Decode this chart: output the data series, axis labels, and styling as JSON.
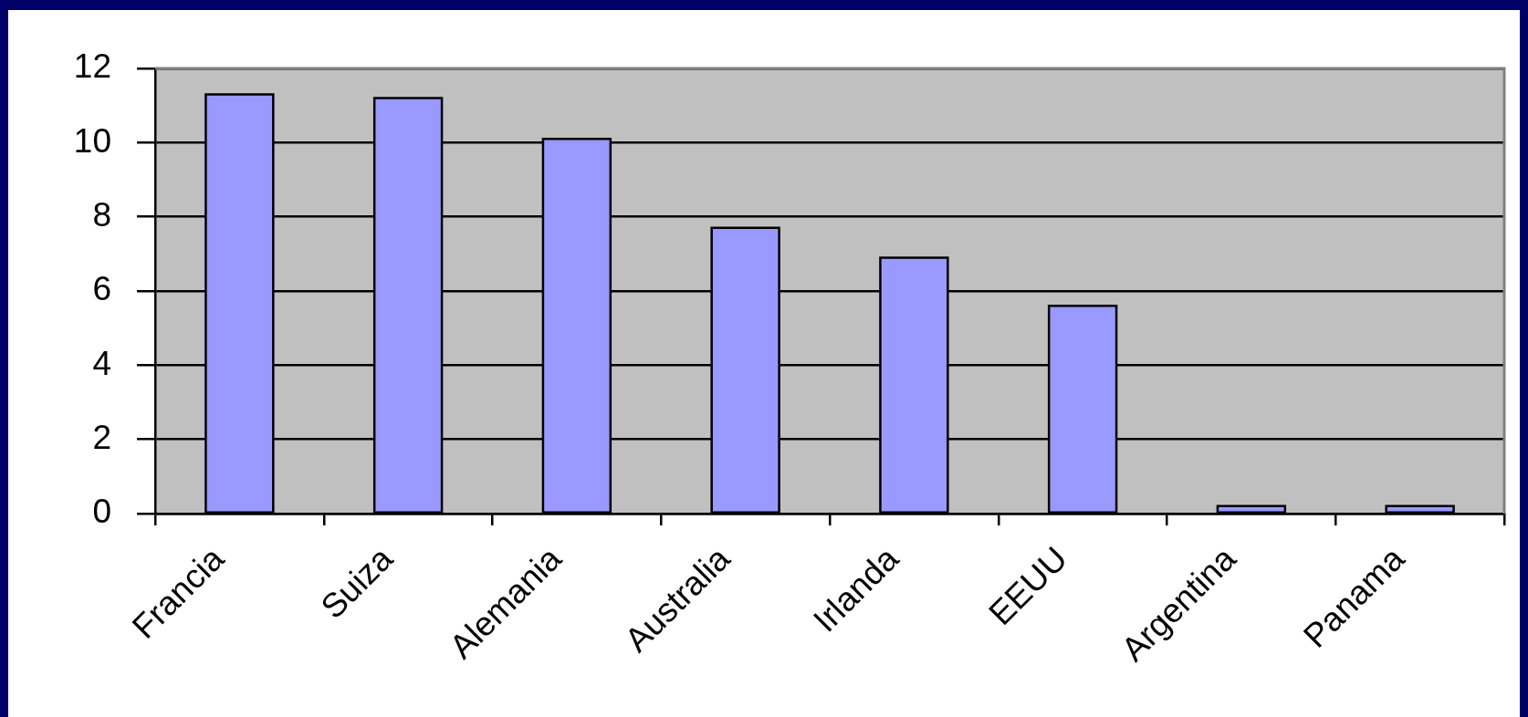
{
  "chart_data": {
    "type": "bar",
    "categories": [
      "Francia",
      "Suiza",
      "Alemania",
      "Australia",
      "Irlanda",
      "EEUU",
      "Argentina",
      "Panama"
    ],
    "values": [
      11.3,
      11.2,
      10.1,
      7.7,
      6.9,
      5.6,
      0.2,
      0.2
    ],
    "color": "#9999ff",
    "ylim": [
      0,
      12
    ],
    "yticks": [
      0,
      2,
      4,
      6,
      8,
      10,
      12
    ],
    "grid": "y"
  }
}
